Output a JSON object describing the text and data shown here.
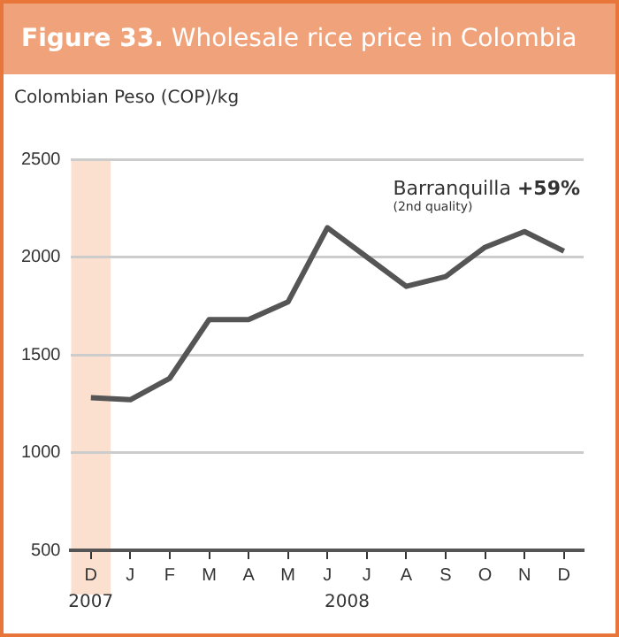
{
  "chart_data": {
    "type": "line",
    "title": "Figure 33. Wholesale rice price in Colombia",
    "ylabel": "Colombian Peso (COP)/kg",
    "categories": [
      "D",
      "J",
      "F",
      "M",
      "A",
      "M",
      "J",
      "J",
      "A",
      "S",
      "O",
      "N",
      "D"
    ],
    "series": [
      {
        "name": "Barranquilla",
        "color": "#555555",
        "values": [
          1280,
          1270,
          1380,
          1680,
          1680,
          1770,
          2150,
          2000,
          1850,
          1900,
          2050,
          2130,
          2030
        ]
      }
    ],
    "ylim": [
      500,
      2500
    ],
    "yticks": [
      500,
      1000,
      1500,
      2000,
      2500
    ],
    "grid": "y",
    "marker": "none",
    "line_style": "solid",
    "bands": [
      {
        "axis": "x",
        "from": "D",
        "to": "D",
        "label": "2007",
        "color": "#fbe0d0"
      }
    ],
    "annotations": [
      "+59%",
      "(2nd quality)",
      "2008"
    ]
  }
}
